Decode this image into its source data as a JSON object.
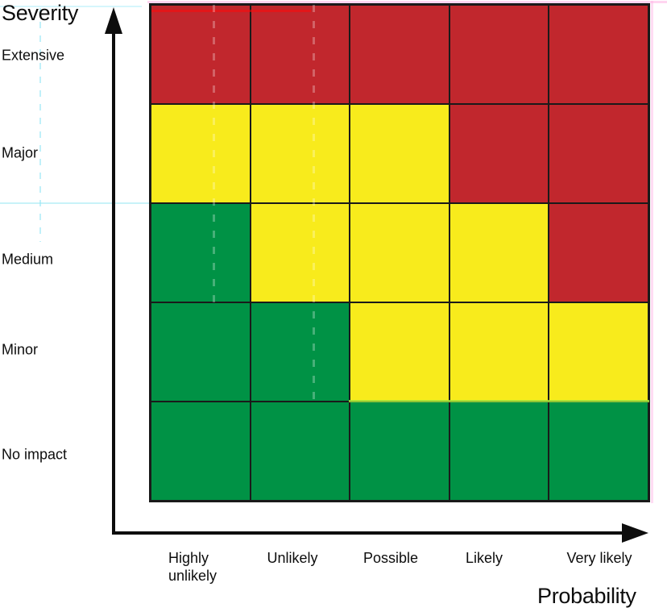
{
  "y_axis": {
    "title": "Severity",
    "labels": [
      "Extensive",
      "Major",
      "Medium",
      "Minor",
      "No impact"
    ]
  },
  "x_axis": {
    "title": "Probability",
    "labels": [
      "Highly\nunlikely",
      "Unlikely",
      "Possible",
      "Likely",
      "Very likely"
    ]
  },
  "risk_colors": {
    "red": "#C1272D",
    "yellow": "#F8EB1C",
    "green": "#009245"
  },
  "grid_line_color": "#1A1A1A",
  "matrix_top_to_bottom": [
    [
      "red",
      "red",
      "red",
      "red",
      "red"
    ],
    [
      "yellow",
      "yellow",
      "yellow",
      "red",
      "red"
    ],
    [
      "green",
      "yellow",
      "yellow",
      "yellow",
      "red"
    ],
    [
      "green",
      "green",
      "yellow",
      "yellow",
      "yellow"
    ],
    [
      "green",
      "green",
      "green",
      "green",
      "green"
    ]
  ],
  "chart_data": {
    "type": "heatmap",
    "title": "",
    "xlabel": "Probability",
    "ylabel": "Severity",
    "x_categories": [
      "Highly unlikely",
      "Unlikely",
      "Possible",
      "Likely",
      "Very likely"
    ],
    "y_categories_top_to_bottom": [
      "Extensive",
      "Major",
      "Medium",
      "Minor",
      "No impact"
    ],
    "cells_top_to_bottom": [
      [
        "red",
        "red",
        "red",
        "red",
        "red"
      ],
      [
        "yellow",
        "yellow",
        "yellow",
        "red",
        "red"
      ],
      [
        "green",
        "yellow",
        "yellow",
        "yellow",
        "red"
      ],
      [
        "green",
        "green",
        "yellow",
        "yellow",
        "yellow"
      ],
      [
        "green",
        "green",
        "green",
        "green",
        "green"
      ]
    ],
    "cell_colors_hex": {
      "red": "#C1272D",
      "yellow": "#F8EB1C",
      "green": "#009245"
    },
    "legend_position": "none",
    "grid": "on",
    "axis_arrows": true
  }
}
